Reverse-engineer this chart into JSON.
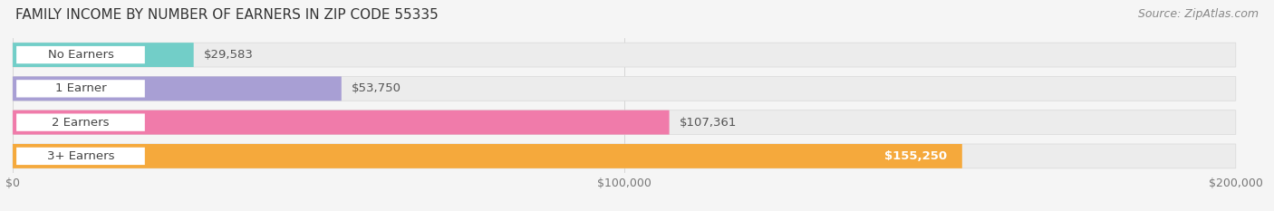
{
  "title": "FAMILY INCOME BY NUMBER OF EARNERS IN ZIP CODE 55335",
  "source": "Source: ZipAtlas.com",
  "categories": [
    "No Earners",
    "1 Earner",
    "2 Earners",
    "3+ Earners"
  ],
  "values": [
    29583,
    53750,
    107361,
    155250
  ],
  "bar_colors": [
    "#72CEC8",
    "#A89FD4",
    "#F07BAA",
    "#F5A93C"
  ],
  "bar_bg_color": "#EBEBEB",
  "xmax": 200000,
  "xticks": [
    0,
    100000,
    200000
  ],
  "xtick_labels": [
    "$0",
    "$100,000",
    "$200,000"
  ],
  "value_labels": [
    "$29,583",
    "$53,750",
    "$107,361",
    "$155,250"
  ],
  "value_label_inside": [
    false,
    false,
    false,
    true
  ],
  "background_color": "#F5F5F5",
  "title_fontsize": 11,
  "source_fontsize": 9,
  "label_fontsize": 9.5,
  "value_fontsize": 9.5
}
